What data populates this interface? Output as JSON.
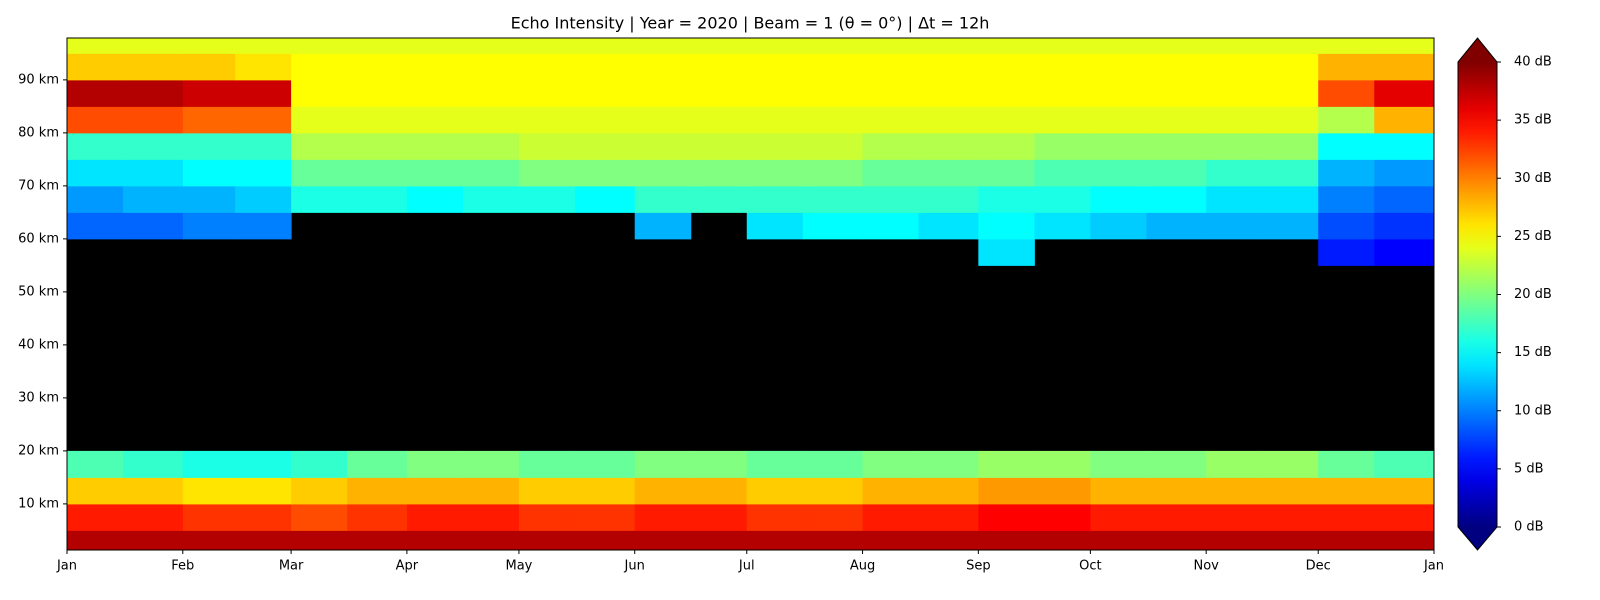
{
  "chart_data": {
    "type": "heatmap",
    "title": "Echo Intensity | Year = 2020 | Beam = 1 (θ = 0°) | Δt = 12h",
    "xlim": [
      0,
      366
    ],
    "xticks": [
      {
        "value": 0,
        "label": "Jan"
      },
      {
        "value": 31,
        "label": "Feb"
      },
      {
        "value": 60,
        "label": "Mar"
      },
      {
        "value": 91,
        "label": "Apr"
      },
      {
        "value": 121,
        "label": "May"
      },
      {
        "value": 152,
        "label": "Jun"
      },
      {
        "value": 182,
        "label": "Jul"
      },
      {
        "value": 213,
        "label": "Aug"
      },
      {
        "value": 244,
        "label": "Sep"
      },
      {
        "value": 274,
        "label": "Oct"
      },
      {
        "value": 305,
        "label": "Nov"
      },
      {
        "value": 335,
        "label": "Dec"
      },
      {
        "value": 366,
        "label": "Jan"
      }
    ],
    "ylim": [
      1.3,
      97.9
    ],
    "yticks": [
      {
        "value": 10,
        "label": "10 km"
      },
      {
        "value": 20,
        "label": "20 km"
      },
      {
        "value": 30,
        "label": "30 km"
      },
      {
        "value": 40,
        "label": "40 km"
      },
      {
        "value": 50,
        "label": "50 km"
      },
      {
        "value": 60,
        "label": "60 km"
      },
      {
        "value": 70,
        "label": "70 km"
      },
      {
        "value": 80,
        "label": "80 km"
      },
      {
        "value": 90,
        "label": "90 km"
      }
    ],
    "x_bins": [
      0,
      15,
      31,
      45,
      60,
      75,
      91,
      106,
      121,
      136,
      152,
      167,
      182,
      197,
      213,
      228,
      244,
      259,
      274,
      289,
      305,
      320,
      335,
      350,
      366
    ],
    "y_bins": [
      1.3,
      5,
      10,
      15,
      20,
      55,
      60,
      65,
      70,
      75,
      80,
      85,
      90,
      95,
      97.9
    ],
    "z": [
      [
        38,
        38,
        38,
        38,
        38,
        38,
        38,
        38,
        38,
        38,
        38,
        38,
        38,
        38,
        38,
        38,
        38,
        38,
        38,
        38,
        38,
        38,
        38,
        38
      ],
      [
        34,
        34,
        33,
        33,
        32,
        33,
        34,
        34,
        33,
        33,
        34,
        34,
        33,
        33,
        34,
        34,
        35,
        35,
        34,
        34,
        34,
        34,
        34,
        34
      ],
      [
        27,
        27,
        26,
        26,
        27,
        28,
        28,
        28,
        27,
        27,
        28,
        28,
        27,
        27,
        28,
        28,
        29,
        29,
        28,
        28,
        28,
        28,
        28,
        28
      ],
      [
        18,
        17,
        16,
        16,
        17,
        19,
        20,
        20,
        19,
        19,
        20,
        20,
        19,
        19,
        20,
        20,
        21,
        21,
        20,
        20,
        21,
        21,
        19,
        18
      ],
      [
        null,
        null,
        null,
        null,
        null,
        null,
        null,
        null,
        null,
        null,
        null,
        null,
        null,
        null,
        null,
        null,
        null,
        null,
        null,
        null,
        null,
        null,
        null,
        null
      ],
      [
        null,
        null,
        null,
        null,
        null,
        null,
        null,
        null,
        null,
        null,
        null,
        null,
        null,
        null,
        null,
        null,
        14,
        null,
        null,
        null,
        null,
        null,
        6,
        5
      ],
      [
        9,
        9,
        10,
        10,
        null,
        null,
        null,
        null,
        null,
        null,
        12,
        null,
        14,
        15,
        15,
        14,
        15,
        14,
        13,
        12,
        12,
        12,
        8,
        7
      ],
      [
        11,
        12,
        12,
        13,
        16,
        16,
        15,
        16,
        16,
        15,
        17,
        17,
        17,
        17,
        17,
        17,
        16,
        16,
        15,
        15,
        14,
        14,
        10,
        9
      ],
      [
        14,
        14,
        15,
        15,
        19,
        19,
        19,
        19,
        20,
        20,
        20,
        20,
        20,
        20,
        19,
        19,
        19,
        18,
        18,
        18,
        17,
        17,
        12,
        11
      ],
      [
        17,
        17,
        17,
        17,
        22,
        22,
        22,
        22,
        23,
        23,
        23,
        23,
        23,
        23,
        22,
        22,
        22,
        21,
        21,
        21,
        21,
        21,
        15,
        15
      ],
      [
        32,
        32,
        31,
        31,
        24,
        24,
        24,
        24,
        24,
        24,
        24,
        24,
        24,
        24,
        24,
        24,
        24,
        24,
        24,
        24,
        24,
        24,
        22,
        28
      ],
      [
        38,
        38,
        37,
        37,
        25,
        25,
        25,
        25,
        25,
        25,
        25,
        25,
        25,
        25,
        25,
        25,
        25,
        25,
        25,
        25,
        25,
        25,
        32,
        36
      ],
      [
        27,
        27,
        27,
        26,
        25,
        25,
        25,
        25,
        25,
        25,
        25,
        25,
        25,
        25,
        25,
        25,
        25,
        25,
        25,
        25,
        25,
        25,
        28,
        28
      ],
      [
        24,
        24,
        24,
        24,
        24,
        24,
        24,
        24,
        24,
        24,
        24,
        24,
        24,
        24,
        24,
        24,
        24,
        24,
        24,
        24,
        24,
        24,
        24,
        24
      ]
    ],
    "colormap": "jet",
    "clim": [
      0,
      40
    ],
    "cticks": [
      {
        "value": 0,
        "label": "0 dB"
      },
      {
        "value": 5,
        "label": "5 dB"
      },
      {
        "value": 10,
        "label": "10 dB"
      },
      {
        "value": 15,
        "label": "15 dB"
      },
      {
        "value": 20,
        "label": "20 dB"
      },
      {
        "value": 25,
        "label": "25 dB"
      },
      {
        "value": 30,
        "label": "30 dB"
      },
      {
        "value": 35,
        "label": "35 dB"
      },
      {
        "value": 40,
        "label": "40 dB"
      }
    ]
  }
}
